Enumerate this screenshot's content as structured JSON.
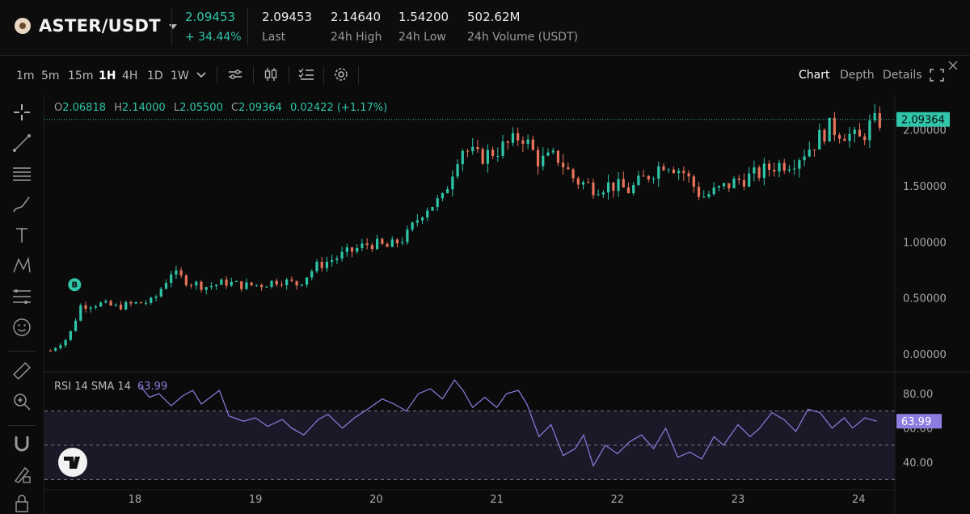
{
  "header": {
    "pair": "ASTER/USDT",
    "price": "2.09453",
    "change": "+ 34.44%",
    "stats": [
      {
        "value": "2.09453",
        "label": "Last"
      },
      {
        "value": "2.14640",
        "label": "24h High"
      },
      {
        "value": "1.54200",
        "label": "24h Low"
      },
      {
        "value": "502.62M",
        "label": "24h Volume (USDT)"
      }
    ]
  },
  "toolbar": {
    "timeframes": [
      "1m",
      "5m",
      "15m",
      "1H",
      "4H",
      "1D",
      "1W"
    ],
    "active_timeframe": "1H",
    "views": [
      "Chart",
      "Depth",
      "Details"
    ],
    "active_view": "Chart"
  },
  "legend": {
    "o_label": "O",
    "o": "2.06818",
    "h_label": "H",
    "h": "2.14000",
    "l_label": "L",
    "l": "2.05500",
    "c_label": "C",
    "c": "2.09364",
    "change": "0.02422 (+1.17%)"
  },
  "marker_label": "B",
  "rsi": {
    "title": "RSI 14 SMA 14",
    "value": "63.99"
  },
  "colors": {
    "up": "#2fc5a8",
    "down": "#e8735a",
    "rsi": "#8d7de0",
    "band": "#1c1827"
  },
  "chart_data": {
    "type": "candlestick",
    "last_price_label": "2.09364",
    "y_ticks": [
      "2.00000",
      "1.50000",
      "1.00000",
      "0.50000",
      "0.00000"
    ],
    "ylim": [
      0,
      2.2
    ],
    "x_ticks": [
      "18",
      "19",
      "20",
      "21",
      "22",
      "23",
      "24"
    ],
    "x_range": [
      17.25,
      24.3
    ],
    "close_path": [
      [
        17.3,
        0.03
      ],
      [
        17.45,
        0.15
      ],
      [
        17.55,
        0.43
      ],
      [
        17.7,
        0.45
      ],
      [
        17.85,
        0.42
      ],
      [
        18.0,
        0.45
      ],
      [
        18.15,
        0.47
      ],
      [
        18.3,
        0.73
      ],
      [
        18.45,
        0.64
      ],
      [
        18.6,
        0.6
      ],
      [
        18.75,
        0.64
      ],
      [
        18.9,
        0.61
      ],
      [
        19.05,
        0.62
      ],
      [
        19.2,
        0.66
      ],
      [
        19.35,
        0.62
      ],
      [
        19.5,
        0.78
      ],
      [
        19.65,
        0.85
      ],
      [
        19.8,
        0.92
      ],
      [
        19.95,
        0.99
      ],
      [
        20.1,
        0.95
      ],
      [
        20.25,
        1.05
      ],
      [
        20.4,
        1.3
      ],
      [
        20.55,
        1.38
      ],
      [
        20.7,
        1.85
      ],
      [
        20.85,
        1.75
      ],
      [
        21.0,
        1.82
      ],
      [
        21.15,
        1.9
      ],
      [
        21.2,
        1.97
      ],
      [
        21.35,
        1.72
      ],
      [
        21.5,
        1.76
      ],
      [
        21.65,
        1.55
      ],
      [
        21.8,
        1.49
      ],
      [
        21.95,
        1.51
      ],
      [
        22.1,
        1.46
      ],
      [
        22.25,
        1.59
      ],
      [
        22.4,
        1.72
      ],
      [
        22.55,
        1.62
      ],
      [
        22.7,
        1.4
      ],
      [
        22.85,
        1.47
      ],
      [
        23.0,
        1.55
      ],
      [
        23.15,
        1.6
      ],
      [
        23.3,
        1.68
      ],
      [
        23.45,
        1.72
      ],
      [
        23.6,
        1.85
      ],
      [
        23.75,
        2.02
      ],
      [
        23.9,
        1.97
      ],
      [
        24.0,
        1.9
      ],
      [
        24.1,
        2.05
      ],
      [
        24.2,
        2.09
      ]
    ],
    "rsi_ticks": [
      "80.00",
      "60.00",
      "40.00"
    ],
    "rsi_levels": [
      70,
      50,
      30
    ],
    "rsi_ylim": [
      25,
      90
    ],
    "rsi_values": [
      [
        18.05,
        84
      ],
      [
        18.12,
        78
      ],
      [
        18.2,
        80
      ],
      [
        18.3,
        73
      ],
      [
        18.4,
        79
      ],
      [
        18.48,
        82
      ],
      [
        18.55,
        74
      ],
      [
        18.7,
        82
      ],
      [
        18.78,
        67
      ],
      [
        18.9,
        64
      ],
      [
        19.0,
        66
      ],
      [
        19.1,
        61
      ],
      [
        19.22,
        65
      ],
      [
        19.3,
        60
      ],
      [
        19.4,
        56
      ],
      [
        19.52,
        65
      ],
      [
        19.6,
        68
      ],
      [
        19.72,
        60
      ],
      [
        19.82,
        66
      ],
      [
        19.95,
        72
      ],
      [
        20.05,
        77
      ],
      [
        20.15,
        74
      ],
      [
        20.25,
        70
      ],
      [
        20.35,
        80
      ],
      [
        20.45,
        83
      ],
      [
        20.55,
        77
      ],
      [
        20.65,
        88
      ],
      [
        20.72,
        82
      ],
      [
        20.8,
        72
      ],
      [
        20.9,
        78
      ],
      [
        21.0,
        72
      ],
      [
        21.08,
        80
      ],
      [
        21.18,
        82
      ],
      [
        21.25,
        74
      ],
      [
        21.35,
        55
      ],
      [
        21.45,
        62
      ],
      [
        21.55,
        44
      ],
      [
        21.65,
        48
      ],
      [
        21.72,
        56
      ],
      [
        21.8,
        38
      ],
      [
        21.9,
        50
      ],
      [
        22.0,
        45
      ],
      [
        22.1,
        52
      ],
      [
        22.2,
        56
      ],
      [
        22.3,
        48
      ],
      [
        22.4,
        60
      ],
      [
        22.5,
        43
      ],
      [
        22.6,
        46
      ],
      [
        22.7,
        42
      ],
      [
        22.8,
        55
      ],
      [
        22.88,
        50
      ],
      [
        23.0,
        62
      ],
      [
        23.1,
        55
      ],
      [
        23.18,
        60
      ],
      [
        23.28,
        69
      ],
      [
        23.38,
        65
      ],
      [
        23.48,
        58
      ],
      [
        23.58,
        71
      ],
      [
        23.68,
        69
      ],
      [
        23.78,
        60
      ],
      [
        23.88,
        66
      ],
      [
        23.95,
        60
      ],
      [
        24.05,
        66
      ],
      [
        24.15,
        64
      ]
    ]
  }
}
